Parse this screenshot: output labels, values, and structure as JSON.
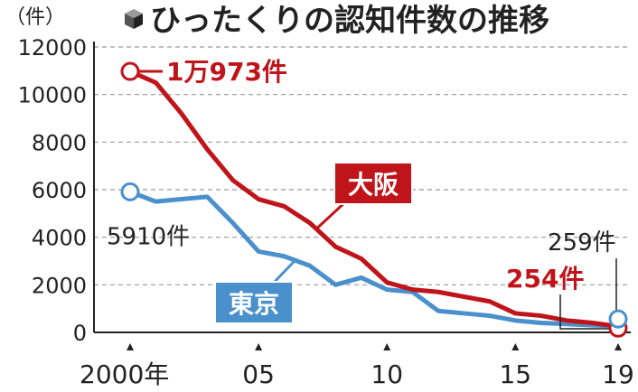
{
  "title": "ひったくりの認知件数の推移",
  "title_icon": "cube-icon",
  "unit_label": "（件）",
  "chart_data": {
    "type": "line",
    "title": "ひったくりの認知件数の推移",
    "xlabel": "",
    "ylabel": "（件）",
    "x": [
      2000,
      2001,
      2002,
      2003,
      2004,
      2005,
      2006,
      2007,
      2008,
      2009,
      2010,
      2011,
      2012,
      2013,
      2014,
      2015,
      2016,
      2017,
      2018,
      2019
    ],
    "x_tick_values": [
      2000,
      2005,
      2010,
      2015,
      2019
    ],
    "x_tick_labels": [
      "2000年",
      "05",
      "10",
      "15",
      "19"
    ],
    "ylim": [
      0,
      12000
    ],
    "y_ticks": [
      0,
      2000,
      4000,
      6000,
      8000,
      10000,
      12000
    ],
    "y_tick_labels": [
      "0",
      "2000",
      "4000",
      "6000",
      "8000",
      "10000",
      "12000"
    ],
    "grid": true,
    "series": [
      {
        "name": "大阪",
        "color": "#c0141b",
        "values": [
          10973,
          10500,
          9200,
          7700,
          6400,
          5600,
          5300,
          4600,
          3600,
          3100,
          2100,
          1800,
          1700,
          1500,
          1300,
          800,
          700,
          500,
          400,
          254
        ]
      },
      {
        "name": "東京",
        "color": "#4a90cc",
        "values": [
          5910,
          5500,
          5600,
          5700,
          4600,
          3400,
          3200,
          2800,
          2000,
          2300,
          1800,
          1700,
          900,
          800,
          700,
          500,
          400,
          350,
          300,
          259
        ]
      }
    ],
    "annotations": {
      "osaka_start": "1万973件",
      "tokyo_start": "5910件",
      "osaka_end": "254件",
      "tokyo_end": "259件"
    }
  }
}
